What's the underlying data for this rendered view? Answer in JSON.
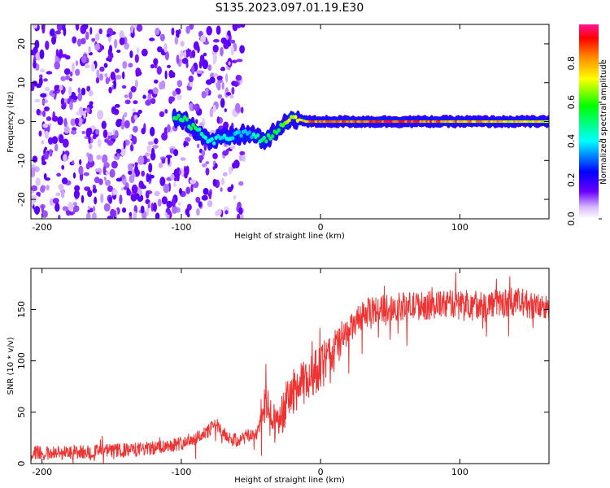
{
  "title": "S135.2023.097.01.19.E30",
  "chart_data": [
    {
      "type": "heatmap",
      "xlabel": "Height of straight line (km)",
      "ylabel": "Frequency (Hz)",
      "xlim": [
        -208,
        164
      ],
      "ylim": [
        -25,
        25
      ],
      "x_ticks": [
        -200,
        -100,
        0,
        100
      ],
      "y_ticks": [
        -20,
        -10,
        0,
        10,
        20
      ],
      "colorbar": {
        "label": "Normalized spectral amplitude",
        "range": [
          0.0,
          1.0
        ],
        "ticks": [
          0.0,
          0.2,
          0.4,
          0.6,
          0.8
        ]
      },
      "ridge": [
        {
          "x": -100,
          "f": 1,
          "amp": 0.55
        },
        {
          "x": -90,
          "f": -2,
          "amp": 0.55
        },
        {
          "x": -80,
          "f": -5,
          "amp": 0.45
        },
        {
          "x": -50,
          "f": -3,
          "amp": 0.4
        },
        {
          "x": -40,
          "f": -5,
          "amp": 0.55
        },
        {
          "x": -30,
          "f": -2,
          "amp": 0.6
        },
        {
          "x": -20,
          "f": 1,
          "amp": 0.75
        },
        {
          "x": -10,
          "f": 0,
          "amp": 0.85
        },
        {
          "x": 0,
          "f": 0,
          "amp": 0.9
        },
        {
          "x": 50,
          "f": 0,
          "amp": 0.95
        },
        {
          "x": 100,
          "f": 0,
          "amp": 0.85
        },
        {
          "x": 164,
          "f": 0,
          "amp": 0.75
        }
      ],
      "noise_region_x": [
        -208,
        -55
      ]
    },
    {
      "type": "line",
      "xlabel": "Height of straight line (km)",
      "ylabel": "SNR (10 * v/v)",
      "xlim": [
        -208,
        164
      ],
      "ylim": [
        0,
        190
      ],
      "x_ticks": [
        -200,
        -100,
        0,
        100
      ],
      "y_ticks": [
        0,
        50,
        100,
        150
      ],
      "color": "#ee3333",
      "series": [
        {
          "name": "",
          "x": [
            -208,
            -180,
            -160,
            -140,
            -120,
            -100,
            -90,
            -80,
            -75,
            -70,
            -60,
            -50,
            -45,
            -40,
            -35,
            -30,
            -20,
            -10,
            0,
            10,
            20,
            30,
            40,
            50,
            60,
            80,
            100,
            120,
            140,
            164
          ],
          "y": [
            10,
            11,
            12,
            13,
            15,
            20,
            25,
            32,
            40,
            28,
            22,
            28,
            30,
            60,
            38,
            45,
            70,
            80,
            95,
            110,
            128,
            145,
            150,
            152,
            153,
            154,
            156,
            155,
            158,
            150
          ]
        }
      ]
    }
  ]
}
